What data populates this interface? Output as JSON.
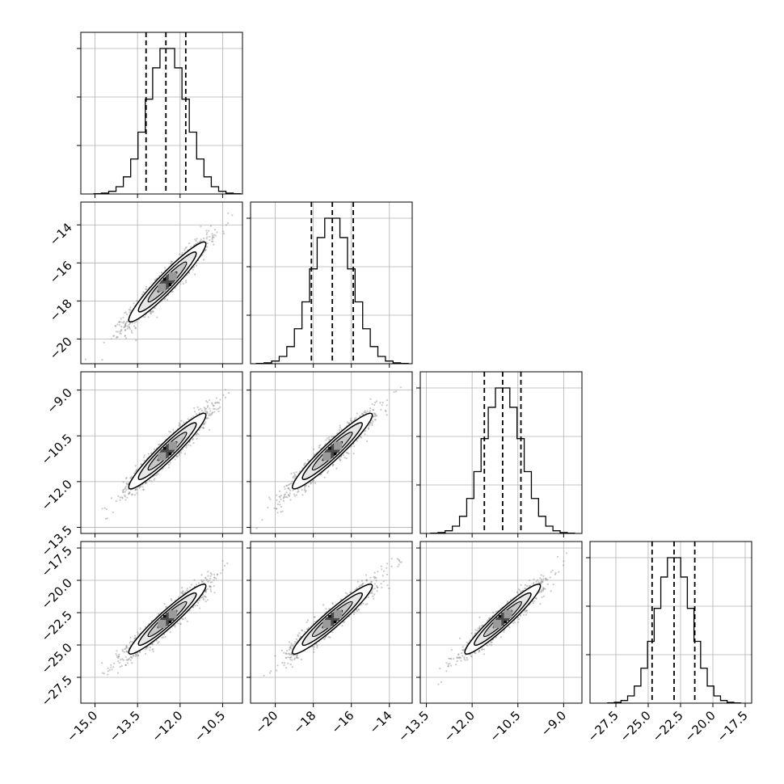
{
  "chart_data": {
    "type": "corner",
    "title": "",
    "dimensions": [
      {
        "id": "p0",
        "label": "",
        "range": [
          -15.5,
          -9.8
        ],
        "ticks": [
          -15.0,
          -13.5,
          -12.0,
          -10.5
        ],
        "tick_labels": [
          "−15.0",
          "−13.5",
          "−12.0",
          "−10.5"
        ],
        "mean": -12.45,
        "sigma": 0.68,
        "quantiles": [
          -13.2,
          -12.5,
          -11.8
        ]
      },
      {
        "id": "p1",
        "label": "",
        "range": [
          -21.3,
          -12.8
        ],
        "ticks": [
          -20,
          -18,
          -16,
          -14
        ],
        "tick_labels": [
          "−20",
          "−18",
          "−16",
          "−14"
        ],
        "mean": -17.0,
        "sigma": 1.05,
        "quantiles": [
          -18.1,
          -17.0,
          -15.9
        ]
      },
      {
        "id": "p2",
        "label": "",
        "range": [
          -13.7,
          -8.4
        ],
        "ticks": [
          -13.5,
          -12.0,
          -10.5,
          -9.0
        ],
        "tick_labels": [
          "−13.5",
          "−12.0",
          "−10.5",
          "−9.0"
        ],
        "mean": -11.0,
        "sigma": 0.62,
        "quantiles": [
          -11.6,
          -11.0,
          -10.4
        ]
      },
      {
        "id": "p3",
        "label": "",
        "range": [
          -29.5,
          -17.0
        ],
        "ticks": [
          -27.5,
          -25.0,
          -22.5,
          -20.0,
          -17.5
        ],
        "tick_labels": [
          "−27.5",
          "−25.0",
          "−22.5",
          "−20.0",
          "−17.5"
        ],
        "mean": -23.0,
        "sigma": 1.35,
        "quantiles": [
          -24.7,
          -23.0,
          -21.4
        ]
      }
    ],
    "correlation": 0.95,
    "histogram_shape": "approximately gaussian, ~20 bins",
    "quantile_levels": [
      0.16,
      0.5,
      0.84
    ],
    "grid": true,
    "colors": {
      "lines": "#000000",
      "points": "#888888",
      "density": [
        "#ffffff",
        "#e8e8e8",
        "#c8c8c8",
        "#9a9a9a",
        "#4a4a4a",
        "#000000"
      ],
      "grid": "#b0b0b0"
    }
  }
}
